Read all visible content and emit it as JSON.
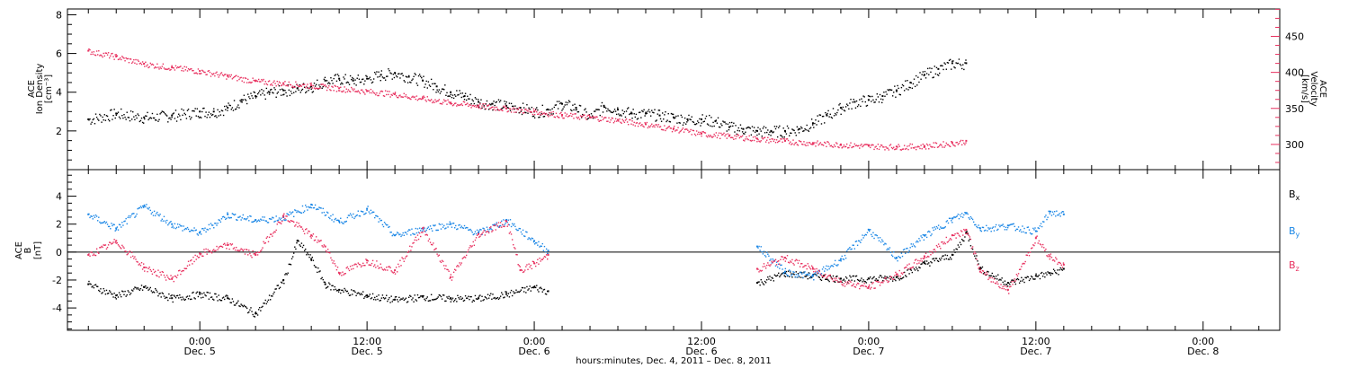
{
  "colors": {
    "black": "#000000",
    "pink": "#e8305f",
    "blue": "#1b87e6"
  },
  "chart_data": [
    {
      "type": "scatter",
      "panel": "top",
      "ylabel_lines": [
        "ACE",
        "Ion Density",
        "[cm⁻³]"
      ],
      "ylabel_right_lines": [
        "ACE",
        "Velocity",
        "[km/s]"
      ],
      "ylim": [
        0,
        8.3
      ],
      "yticks": [
        2,
        4,
        6,
        8
      ],
      "ylim_right": [
        265,
        488
      ],
      "yticks_right": [
        300,
        350,
        400,
        450
      ],
      "series": [
        {
          "color": "#000000",
          "axis": "left",
          "unit": "cm^-3",
          "points": [
            [
              -8,
              2.6
            ],
            [
              -6,
              2.9
            ],
            [
              -4,
              2.7
            ],
            [
              -2,
              2.8
            ],
            [
              0,
              3.0
            ],
            [
              1,
              3.0
            ],
            [
              2,
              3.2
            ],
            [
              3,
              3.6
            ],
            [
              4,
              3.8
            ],
            [
              5,
              4.0
            ],
            [
              6,
              4.1
            ],
            [
              7,
              4.2
            ],
            [
              8,
              4.3
            ],
            [
              9,
              4.6
            ],
            [
              10,
              4.7
            ],
            [
              11,
              4.6
            ],
            [
              12,
              4.7
            ],
            [
              13,
              4.9
            ],
            [
              14,
              5.0
            ],
            [
              15,
              4.8
            ],
            [
              16,
              4.6
            ],
            [
              17,
              4.3
            ],
            [
              18,
              4.0
            ],
            [
              19,
              3.8
            ],
            [
              20,
              3.5
            ],
            [
              21,
              3.4
            ],
            [
              22,
              3.3
            ],
            [
              23,
              3.2
            ],
            [
              24,
              3.0
            ],
            [
              25,
              3.1
            ],
            [
              26,
              3.4
            ],
            [
              27,
              3.2
            ],
            [
              28,
              2.7
            ],
            [
              29,
              3.3
            ],
            [
              30,
              3.1
            ],
            [
              31,
              2.9
            ],
            [
              32,
              2.9
            ],
            [
              33,
              2.8
            ],
            [
              34,
              2.7
            ],
            [
              35,
              2.6
            ],
            [
              36,
              2.6
            ],
            [
              37,
              2.5
            ],
            [
              38,
              2.2
            ],
            [
              39,
              2.1
            ],
            [
              40,
              2.0
            ],
            [
              41,
              2.0
            ],
            [
              42,
              2.0
            ],
            [
              43,
              2.1
            ],
            [
              44,
              2.4
            ],
            [
              45,
              2.8
            ],
            [
              46,
              3.2
            ],
            [
              47,
              3.5
            ],
            [
              48,
              3.6
            ],
            [
              49,
              3.8
            ],
            [
              50,
              4.1
            ],
            [
              51,
              4.5
            ],
            [
              52,
              4.9
            ],
            [
              53,
              5.2
            ],
            [
              54,
              5.5
            ],
            [
              55,
              5.5
            ]
          ]
        },
        {
          "color": "#e8305f",
          "axis": "right",
          "unit": "km/s",
          "points": [
            [
              -8,
              430
            ],
            [
              -6,
              422
            ],
            [
              -4,
              412
            ],
            [
              -2,
              407
            ],
            [
              0,
              402
            ],
            [
              2,
              395
            ],
            [
              4,
              388
            ],
            [
              6,
              385
            ],
            [
              8,
              382
            ],
            [
              10,
              378
            ],
            [
              12,
              374
            ],
            [
              14,
              370
            ],
            [
              16,
              364
            ],
            [
              18,
              358
            ],
            [
              20,
              354
            ],
            [
              22,
              350
            ],
            [
              24,
              346
            ],
            [
              26,
              341
            ],
            [
              28,
              338
            ],
            [
              30,
              334
            ],
            [
              32,
              328
            ],
            [
              34,
              322
            ],
            [
              36,
              315
            ],
            [
              38,
              312
            ],
            [
              40,
              308
            ],
            [
              42,
              305
            ],
            [
              44,
              302
            ],
            [
              46,
              300
            ],
            [
              48,
              298
            ],
            [
              50,
              297
            ],
            [
              52,
              298
            ],
            [
              54,
              302
            ],
            [
              55,
              305
            ]
          ]
        }
      ]
    },
    {
      "type": "scatter",
      "panel": "bottom",
      "ylabel_lines": [
        "ACE",
        "B",
        "[nT]"
      ],
      "ylim": [
        -5.6,
        5.9
      ],
      "yticks": [
        -4,
        -2,
        0,
        2,
        4
      ],
      "zero_line": true,
      "legend_position": "right",
      "series": [
        {
          "name": "Bx",
          "label_main": "B",
          "label_sub": "x",
          "color": "#000000",
          "points": [
            [
              -8,
              -2.3
            ],
            [
              -6,
              -3.1
            ],
            [
              -4,
              -2.5
            ],
            [
              -2,
              -3.3
            ],
            [
              0,
              -3.0
            ],
            [
              2,
              -3.3
            ],
            [
              4,
              -4.4
            ],
            [
              6,
              -2.0
            ],
            [
              7,
              0.8
            ],
            [
              8,
              -0.5
            ],
            [
              9,
              -2.3
            ],
            [
              10,
              -2.7
            ],
            [
              12,
              -3.1
            ],
            [
              14,
              -3.4
            ],
            [
              16,
              -3.2
            ],
            [
              18,
              -3.3
            ],
            [
              20,
              -3.3
            ],
            [
              22,
              -3.0
            ],
            [
              24,
              -2.5
            ],
            [
              25,
              -2.8
            ],
            [
              40,
              -2.2
            ],
            [
              42,
              -1.5
            ],
            [
              44,
              -1.7
            ],
            [
              46,
              -1.9
            ],
            [
              48,
              -1.9
            ],
            [
              50,
              -1.8
            ],
            [
              52,
              -0.8
            ],
            [
              54,
              -0.2
            ],
            [
              55,
              1.4
            ],
            [
              56,
              -1.2
            ],
            [
              58,
              -2.2
            ],
            [
              60,
              -1.7
            ],
            [
              61,
              -1.5
            ],
            [
              62,
              -1.2
            ]
          ]
        },
        {
          "name": "By",
          "label_main": "B",
          "label_sub": "y",
          "color": "#1b87e6",
          "points": [
            [
              -8,
              2.7
            ],
            [
              -6,
              1.7
            ],
            [
              -4,
              3.3
            ],
            [
              -2,
              2.0
            ],
            [
              0,
              1.4
            ],
            [
              2,
              2.7
            ],
            [
              4,
              2.3
            ],
            [
              6,
              2.5
            ],
            [
              8,
              3.4
            ],
            [
              10,
              2.2
            ],
            [
              12,
              3.1
            ],
            [
              14,
              1.2
            ],
            [
              16,
              1.7
            ],
            [
              18,
              2.0
            ],
            [
              20,
              1.4
            ],
            [
              22,
              2.3
            ],
            [
              24,
              0.8
            ],
            [
              25,
              0.1
            ],
            [
              40,
              0.4
            ],
            [
              42,
              -1.4
            ],
            [
              44,
              -1.7
            ],
            [
              46,
              -0.5
            ],
            [
              48,
              1.6
            ],
            [
              50,
              -0.4
            ],
            [
              52,
              1.2
            ],
            [
              54,
              2.4
            ],
            [
              55,
              2.8
            ],
            [
              56,
              1.7
            ],
            [
              58,
              1.9
            ],
            [
              60,
              1.5
            ],
            [
              61,
              2.9
            ],
            [
              62,
              2.7
            ]
          ]
        },
        {
          "name": "Bz",
          "label_main": "B",
          "label_sub": "z",
          "color": "#e8305f",
          "points": [
            [
              -8,
              -0.2
            ],
            [
              -6,
              0.8
            ],
            [
              -4,
              -1.1
            ],
            [
              -2,
              -1.9
            ],
            [
              0,
              -0.1
            ],
            [
              2,
              0.5
            ],
            [
              4,
              -0.2
            ],
            [
              6,
              2.6
            ],
            [
              8,
              1.2
            ],
            [
              9,
              0.4
            ],
            [
              10,
              -1.5
            ],
            [
              12,
              -0.6
            ],
            [
              14,
              -1.3
            ],
            [
              16,
              1.7
            ],
            [
              18,
              -1.8
            ],
            [
              20,
              1.3
            ],
            [
              22,
              2.2
            ],
            [
              23,
              -1.3
            ],
            [
              24,
              -0.8
            ],
            [
              25,
              -0.2
            ],
            [
              40,
              -1.2
            ],
            [
              42,
              -0.4
            ],
            [
              44,
              -1.2
            ],
            [
              46,
              -2.1
            ],
            [
              48,
              -2.5
            ],
            [
              50,
              -1.6
            ],
            [
              52,
              -0.3
            ],
            [
              54,
              1.2
            ],
            [
              55,
              1.6
            ],
            [
              56,
              -1.4
            ],
            [
              58,
              -2.7
            ],
            [
              60,
              1.0
            ],
            [
              61,
              -0.3
            ],
            [
              62,
              -0.9
            ]
          ]
        }
      ]
    }
  ],
  "x_axis": {
    "tick_hours": [
      0,
      12,
      24,
      36,
      48,
      60,
      72
    ],
    "tick_times": [
      "0:00",
      "12:00",
      "0:00",
      "12:00",
      "0:00",
      "12:00",
      "0:00"
    ],
    "tick_dates": [
      "Dec. 5",
      "Dec. 5",
      "Dec. 6",
      "Dec. 6",
      "Dec. 7",
      "Dec. 7",
      "Dec. 8"
    ],
    "title": "hours:minutes, Dec.  4, 2011 – Dec.  8, 2011"
  }
}
